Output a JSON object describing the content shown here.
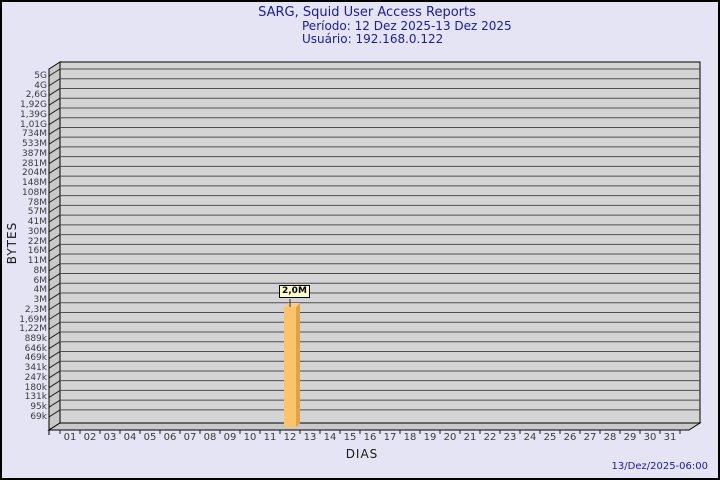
{
  "header": {
    "title": "SARG, Squid User Access Reports",
    "period": "Período: 12 Dez 2025-13 Dez 2025",
    "user": "Usuário: 192.168.0.122"
  },
  "footer": {
    "generated": "13/Dez/2025-06:00"
  },
  "chart_data": {
    "type": "bar",
    "title": "SARG, Squid User Access Reports",
    "subtitle": [
      "Período: 12 Dez 2025-13 Dez 2025",
      "Usuário: 192.168.0.122"
    ],
    "xlabel": "DIAS",
    "ylabel": "BYTES",
    "x_categories": [
      "01",
      "02",
      "03",
      "04",
      "05",
      "06",
      "07",
      "08",
      "09",
      "10",
      "11",
      "12",
      "13",
      "14",
      "15",
      "16",
      "17",
      "18",
      "19",
      "20",
      "21",
      "22",
      "23",
      "24",
      "25",
      "26",
      "27",
      "28",
      "29",
      "30",
      "31"
    ],
    "y_scale": "log",
    "y_tick_labels": [
      "5G",
      "4G",
      "2,6G",
      "1,92G",
      "1,39G",
      "1,01G",
      "734M",
      "533M",
      "387M",
      "281M",
      "204M",
      "148M",
      "108M",
      "78M",
      "57M",
      "41M",
      "30M",
      "22M",
      "16M",
      "11M",
      "8M",
      "6M",
      "4M",
      "3M",
      "2,3M",
      "1,69M",
      "1,22M",
      "889k",
      "646k",
      "469k",
      "341k",
      "247k",
      "180k",
      "131k",
      "95k",
      "69k"
    ],
    "y_top_value": 5000000000,
    "y_bottom_value": 69000,
    "grid": "horizontal",
    "legend": "none",
    "bars": [
      {
        "day": "12",
        "value_label": "2,0M",
        "value_bytes": 2000000
      }
    ]
  },
  "colors": {
    "background": "#e4e4f5",
    "border": "#000000",
    "title_text": "#1c1c99",
    "grid_fill": "#d4d4d4",
    "grid_line": "#4f4f4f",
    "wall_fill": "#c9c9c9",
    "axis_line": "#000000",
    "tick_color": "#222222",
    "bar_front": "#fbc36b",
    "bar_side": "#dfa246",
    "bar_top": "#f8ce8a",
    "value_label_bg": "#ffffcc",
    "axis_text": "#3c3c3c"
  }
}
